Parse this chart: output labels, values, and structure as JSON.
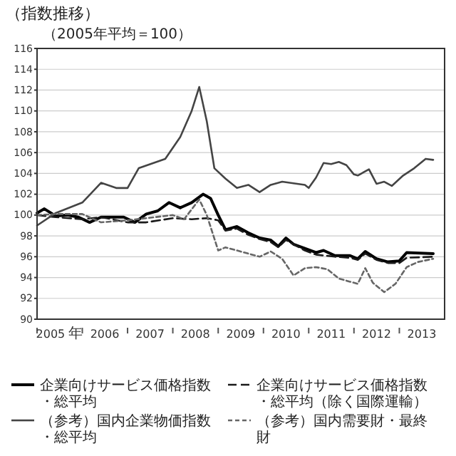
{
  "chart_data": {
    "type": "line",
    "title": "（指数推移）",
    "subtitle": "（2005年平均＝100）",
    "xlim": [
      "2005-01",
      "2014-01"
    ],
    "xticks": [
      {
        "value": "2005-01",
        "label": null
      },
      {
        "value": "2005-07",
        "label": "2005 年"
      },
      {
        "value": "2006-01",
        "label": null
      },
      {
        "value": "2006-07",
        "label": "2006"
      },
      {
        "value": "2007-01",
        "label": null
      },
      {
        "value": "2007-07",
        "label": "2007"
      },
      {
        "value": "2008-01",
        "label": null
      },
      {
        "value": "2008-07",
        "label": "2008"
      },
      {
        "value": "2009-01",
        "label": null
      },
      {
        "value": "2009-07",
        "label": "2009"
      },
      {
        "value": "2010-01",
        "label": null
      },
      {
        "value": "2010-07",
        "label": "2010"
      },
      {
        "value": "2011-01",
        "label": null
      },
      {
        "value": "2011-07",
        "label": "2011"
      },
      {
        "value": "2012-01",
        "label": null
      },
      {
        "value": "2012-07",
        "label": "2012"
      },
      {
        "value": "2013-01",
        "label": null
      },
      {
        "value": "2013-07",
        "label": "2013"
      }
    ],
    "ylim": [
      90,
      116
    ],
    "yticks": [
      90,
      92,
      94,
      96,
      98,
      100,
      102,
      104,
      106,
      108,
      110,
      112,
      114,
      116
    ],
    "grid": "y",
    "legend": "bottom",
    "marker": "none",
    "series": [
      {
        "name": "企業向けサービス価格指数・総平均",
        "color": "#000000",
        "line_style": "solid",
        "x": [
          "2005-01",
          "2005-03",
          "2005-06",
          "2005-09",
          "2005-12",
          "2006-03",
          "2006-06",
          "2006-12",
          "2007-03",
          "2007-06",
          "2007-09",
          "2007-12",
          "2008-03",
          "2008-06",
          "2008-09",
          "2008-11",
          "2009-01",
          "2009-03",
          "2009-06",
          "2009-09",
          "2009-12",
          "2010-03",
          "2010-05",
          "2010-07",
          "2010-09",
          "2010-12",
          "2011-03",
          "2011-05",
          "2011-08",
          "2011-12",
          "2012-02",
          "2012-04",
          "2012-07",
          "2012-10",
          "2013-01",
          "2013-03",
          "2013-10"
        ],
        "values": [
          100.2,
          100.6,
          99.9,
          100,
          99.8,
          99.3,
          99.8,
          99.8,
          99.3,
          100.1,
          100.4,
          101.2,
          100.7,
          101.2,
          102,
          101.6,
          100,
          98.6,
          98.9,
          98.3,
          97.8,
          97.6,
          97,
          97.8,
          97.2,
          96.8,
          96.4,
          96.6,
          96.1,
          96.1,
          95.8,
          96.5,
          95.8,
          95.5,
          95.6,
          96.4,
          96.3
        ]
      },
      {
        "name": "企業向けサービス価格指数・総平均（除く国際運輸）",
        "color": "#1a1a1a",
        "line_style": "dashed",
        "x": [
          "2005-01",
          "2005-06",
          "2006-01",
          "2006-06",
          "2007-01",
          "2007-06",
          "2008-01",
          "2008-06",
          "2008-10",
          "2009-01",
          "2009-03",
          "2009-06",
          "2009-09",
          "2009-12",
          "2010-03",
          "2010-05",
          "2010-07",
          "2010-12",
          "2011-03",
          "2011-08",
          "2011-12",
          "2012-02",
          "2012-04",
          "2012-07",
          "2012-10",
          "2013-01",
          "2013-03",
          "2013-10"
        ],
        "values": [
          100,
          99.8,
          99.6,
          99.8,
          99.3,
          99.3,
          99.7,
          99.6,
          99.7,
          99.5,
          98.5,
          98.7,
          98.1,
          97.7,
          97.4,
          96.9,
          97.6,
          96.6,
          96.2,
          96,
          95.9,
          95.7,
          96.3,
          95.7,
          95.4,
          95.4,
          95.9,
          96
        ]
      },
      {
        "name": "（参考）国内企業物価指数・総平均",
        "color": "#444444",
        "line_style": "solid",
        "x": [
          "2005-01",
          "2005-06",
          "2006-01",
          "2006-06",
          "2006-10",
          "2007-01",
          "2007-04",
          "2007-11",
          "2008-03",
          "2008-06",
          "2008-08",
          "2008-10",
          "2008-12",
          "2009-03",
          "2009-06",
          "2009-09",
          "2009-12",
          "2010-03",
          "2010-06",
          "2010-12",
          "2011-01",
          "2011-03",
          "2011-05",
          "2011-07",
          "2011-09",
          "2011-11",
          "2012-01",
          "2012-02",
          "2012-05",
          "2012-07",
          "2012-09",
          "2012-11",
          "2013-02",
          "2013-05",
          "2013-08",
          "2013-10"
        ],
        "values": [
          99,
          100.2,
          101.2,
          103.1,
          102.6,
          102.6,
          104.5,
          105.4,
          107.5,
          110,
          112.3,
          109,
          104.5,
          103.5,
          102.6,
          102.9,
          102.2,
          102.9,
          103.2,
          102.9,
          102.6,
          103.6,
          105,
          104.9,
          105.1,
          104.8,
          103.9,
          103.8,
          104.4,
          103,
          103.2,
          102.8,
          103.8,
          104.5,
          105.4,
          105.3
        ]
      },
      {
        "name": "（参考）国内需要財・最終財",
        "color": "#666666",
        "line_style": "dotted",
        "x": [
          "2005-01",
          "2005-06",
          "2006-01",
          "2006-06",
          "2007-01",
          "2007-06",
          "2008-01",
          "2008-04",
          "2008-08",
          "2008-10",
          "2009-01",
          "2009-03",
          "2009-09",
          "2009-12",
          "2010-03",
          "2010-06",
          "2010-09",
          "2010-12",
          "2011-03",
          "2011-06",
          "2011-09",
          "2011-12",
          "2012-02",
          "2012-04",
          "2012-06",
          "2012-09",
          "2012-12",
          "2013-03",
          "2013-06",
          "2013-10"
        ],
        "values": [
          100,
          100.1,
          100.1,
          99.3,
          99.5,
          99.7,
          100,
          99.6,
          101.5,
          100,
          96.6,
          96.9,
          96.3,
          96,
          96.5,
          95.8,
          94.2,
          94.9,
          95,
          94.8,
          93.9,
          93.6,
          93.4,
          94.9,
          93.5,
          92.6,
          93.4,
          95,
          95.5,
          95.8
        ]
      }
    ]
  }
}
